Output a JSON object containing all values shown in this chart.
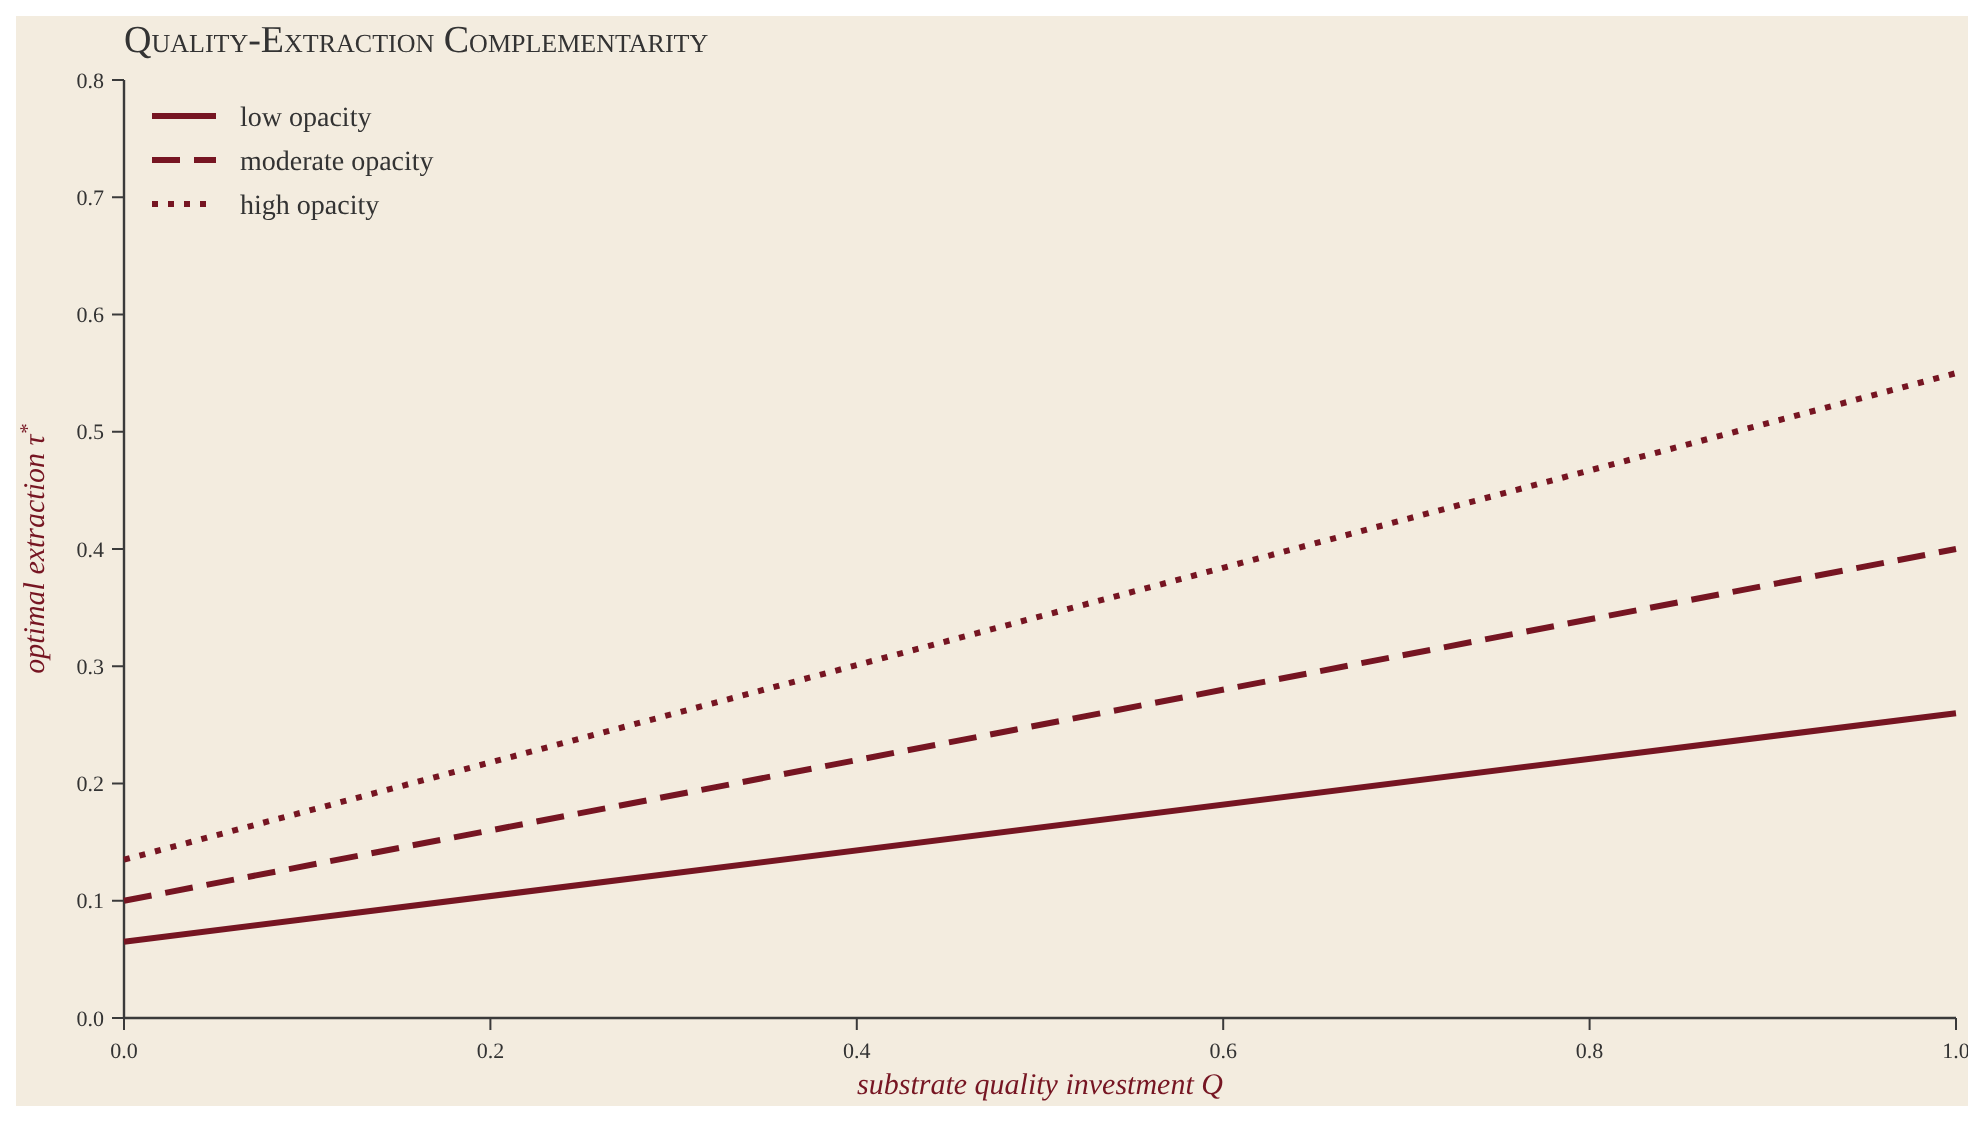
{
  "chart_data": {
    "type": "line",
    "title": "Quality-Extraction Complementarity",
    "xlabel": "substrate quality investment Q",
    "ylabel": "optimal extraction τ$^{*}$",
    "x": [
      0,
      1
    ],
    "series": [
      {
        "name": "low opacity",
        "color": "#761522",
        "values": [
          0.065,
          0.26
        ],
        "line_style": "solid"
      },
      {
        "name": "moderate opacity",
        "color": "#761522",
        "values": [
          0.1,
          0.4
        ],
        "line_style": "dashed"
      },
      {
        "name": "high opacity",
        "color": "#761522",
        "values": [
          0.135,
          0.55
        ],
        "line_style": "dotted"
      }
    ],
    "xlim": [
      0,
      1
    ],
    "xticks": [
      {
        "value": 0,
        "label": "0.0"
      },
      0.2,
      0.4,
      0.6,
      0.8,
      {
        "value": 1,
        "label": "1.0"
      }
    ],
    "ylim": [
      0,
      0.8
    ],
    "yticks": [
      {
        "value": 0,
        "label": "0.0"
      },
      0.1,
      0.2,
      0.3,
      0.4,
      0.5,
      0.6,
      0.7,
      0.8
    ],
    "grid": false,
    "legend": "top left",
    "marker": "none"
  }
}
